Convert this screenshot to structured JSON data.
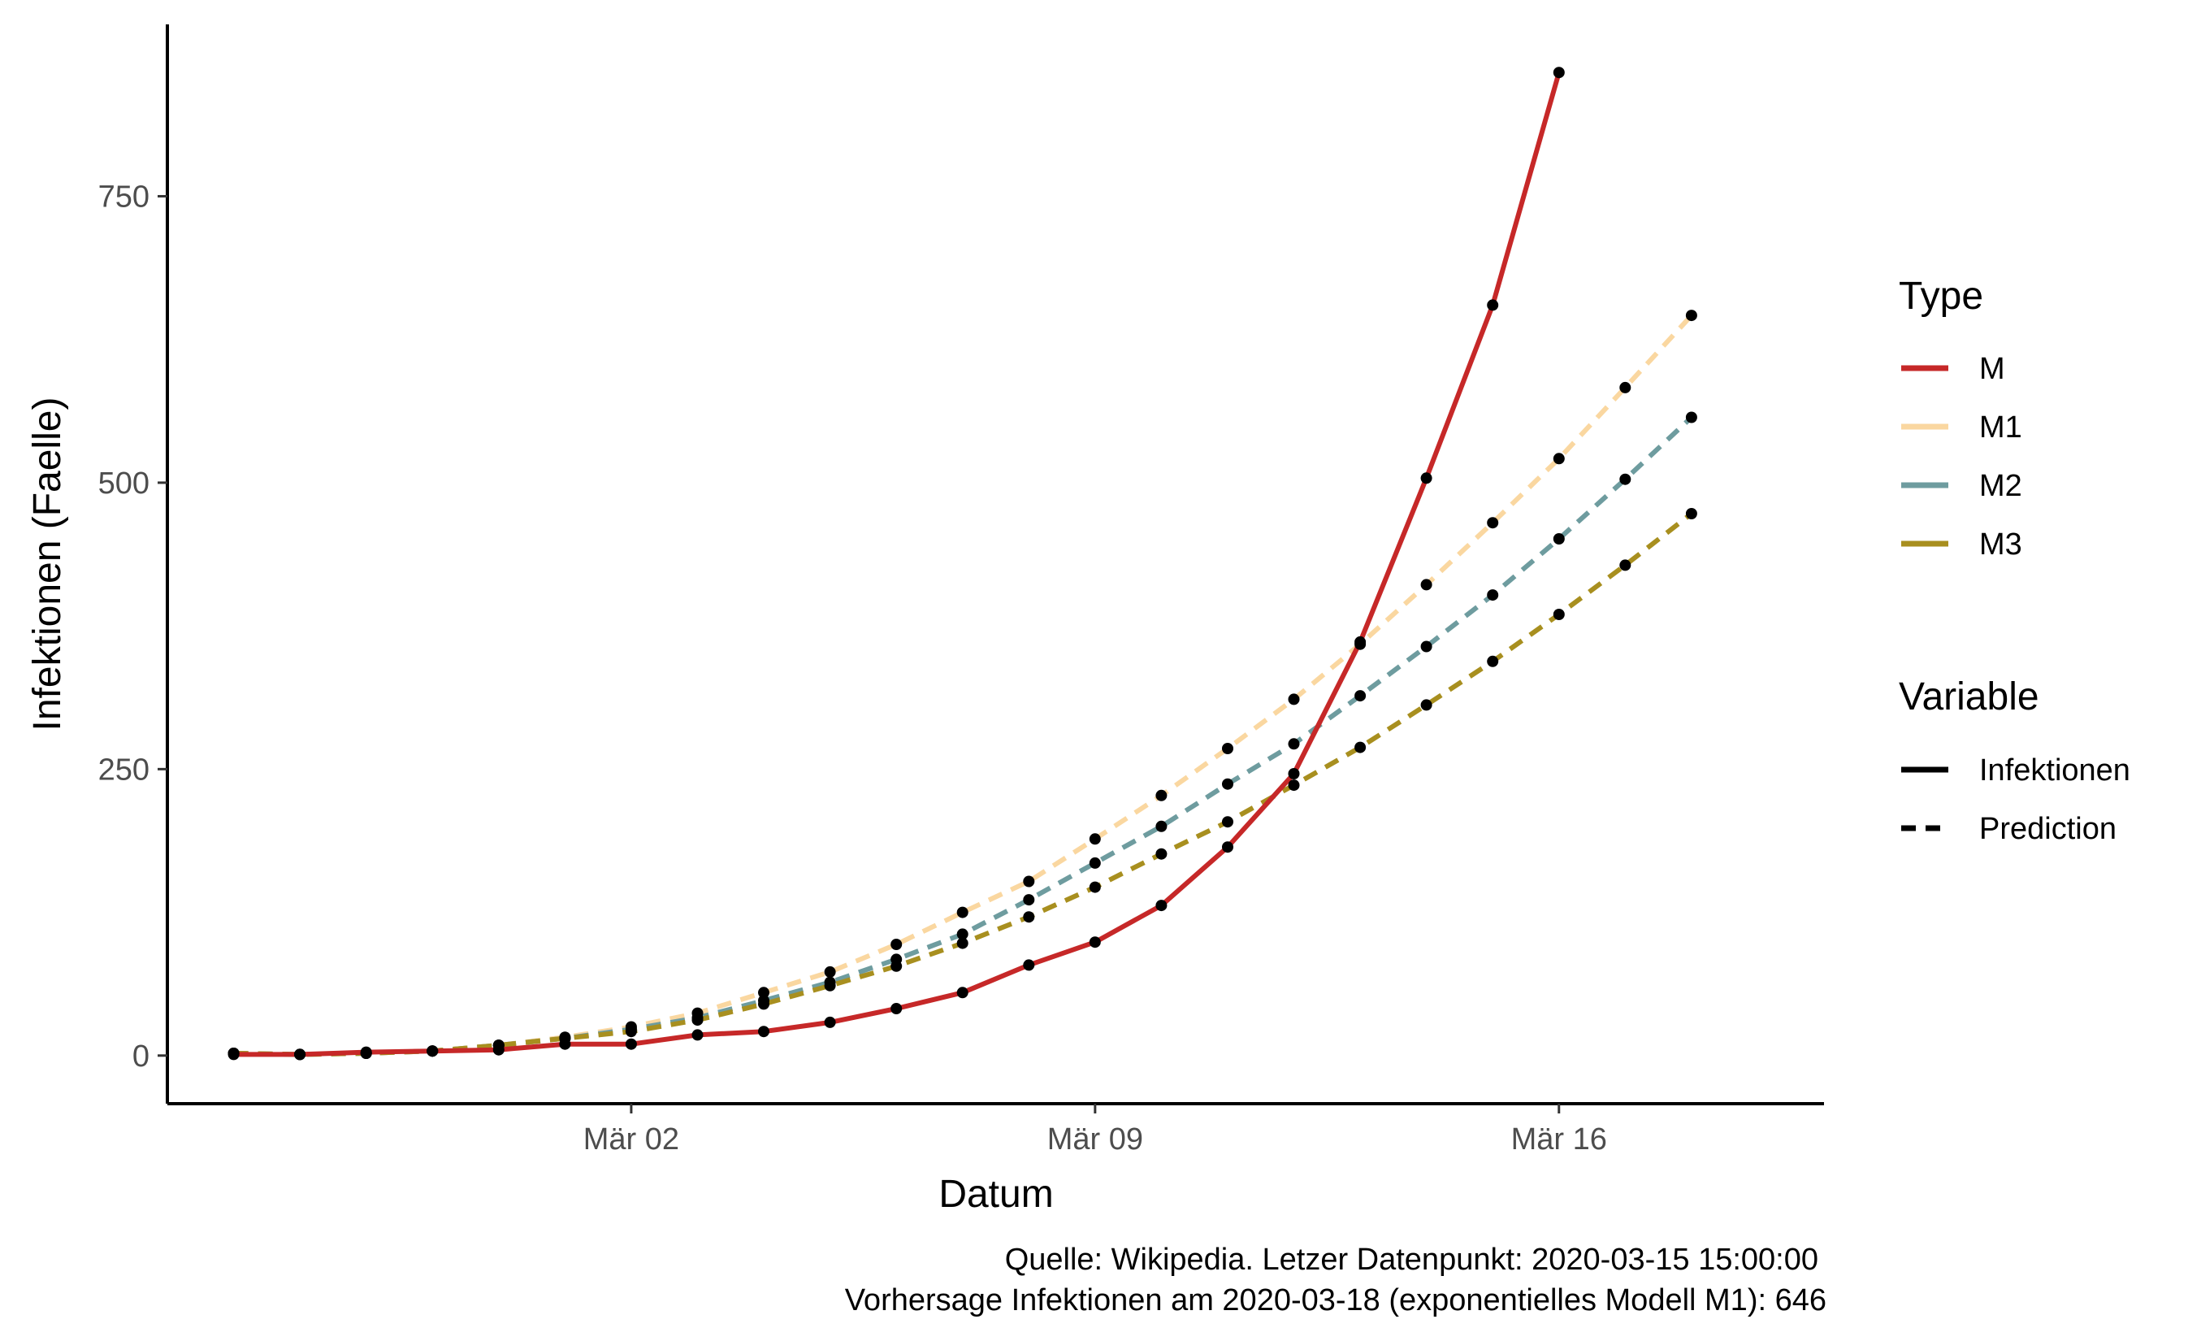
{
  "chart_data": {
    "type": "line",
    "x_type": "date",
    "xlabel": "Datum",
    "ylabel": "Infektionen (Faelle)",
    "x_ticks": [
      {
        "date": "2020-03-02",
        "label": "Mär 02"
      },
      {
        "date": "2020-03-09",
        "label": "Mär 09"
      },
      {
        "date": "2020-03-16",
        "label": "Mär 16"
      }
    ],
    "y_ticks": [
      0,
      250,
      500,
      750
    ],
    "xlim": [
      "2020-02-24",
      "2020-03-20"
    ],
    "ylim": [
      -42,
      900
    ],
    "grid": false,
    "legend_position": "right",
    "legend": {
      "type_title": "Type",
      "type_entries": [
        {
          "label": "M",
          "color": "#C62828"
        },
        {
          "label": "M1",
          "color": "#FAD7A0"
        },
        {
          "label": "M2",
          "color": "#6E9C9F"
        },
        {
          "label": "M3",
          "color": "#A88F1F"
        }
      ],
      "variable_title": "Variable",
      "variable_entries": [
        {
          "label": "Infektionen",
          "style": "solid"
        },
        {
          "label": "Prediction",
          "style": "dashed"
        }
      ]
    },
    "series": [
      {
        "name": "M",
        "variable": "Infektionen",
        "color": "#C62828",
        "style": "solid",
        "x": [
          "2020-02-25",
          "2020-02-26",
          "2020-02-27",
          "2020-02-28",
          "2020-02-29",
          "2020-03-01",
          "2020-03-02",
          "2020-03-03",
          "2020-03-04",
          "2020-03-05",
          "2020-03-06",
          "2020-03-07",
          "2020-03-08",
          "2020-03-09",
          "2020-03-10",
          "2020-03-11",
          "2020-03-12",
          "2020-03-13",
          "2020-03-14",
          "2020-03-15",
          "2020-03-16"
        ],
        "y": [
          1,
          1,
          3,
          4,
          5,
          10,
          10,
          18,
          21,
          29,
          41,
          55,
          79,
          99,
          131,
          182,
          246,
          361,
          504,
          655,
          858
        ]
      },
      {
        "name": "M1",
        "variable": "Prediction",
        "color": "#FAD7A0",
        "style": "dashed",
        "x": [
          "2020-02-25",
          "2020-02-26",
          "2020-02-27",
          "2020-02-28",
          "2020-02-29",
          "2020-03-01",
          "2020-03-02",
          "2020-03-03",
          "2020-03-04",
          "2020-03-05",
          "2020-03-06",
          "2020-03-07",
          "2020-03-08",
          "2020-03-09",
          "2020-03-10",
          "2020-03-11",
          "2020-03-12",
          "2020-03-13",
          "2020-03-14",
          "2020-03-15",
          "2020-03-16",
          "2020-03-17",
          "2020-03-18"
        ],
        "y": [
          2,
          1,
          2,
          4,
          9,
          16,
          25,
          37,
          55,
          73,
          97,
          125,
          152,
          189,
          227,
          268,
          311,
          359,
          411,
          465,
          521,
          583,
          646
        ]
      },
      {
        "name": "M2",
        "variable": "Prediction",
        "color": "#6E9C9F",
        "style": "dashed",
        "x": [
          "2020-02-25",
          "2020-02-26",
          "2020-02-27",
          "2020-02-28",
          "2020-02-29",
          "2020-03-01",
          "2020-03-02",
          "2020-03-03",
          "2020-03-04",
          "2020-03-05",
          "2020-03-06",
          "2020-03-07",
          "2020-03-08",
          "2020-03-09",
          "2020-03-10",
          "2020-03-11",
          "2020-03-12",
          "2020-03-13",
          "2020-03-14",
          "2020-03-15",
          "2020-03-16",
          "2020-03-17",
          "2020-03-18"
        ],
        "y": [
          2,
          1,
          2,
          4,
          9,
          15,
          23,
          33,
          48,
          64,
          84,
          106,
          136,
          168,
          200,
          237,
          272,
          314,
          357,
          402,
          451,
          503,
          557
        ]
      },
      {
        "name": "M3",
        "variable": "Prediction",
        "color": "#A88F1F",
        "style": "dashed",
        "x": [
          "2020-02-25",
          "2020-02-26",
          "2020-02-27",
          "2020-02-28",
          "2020-02-29",
          "2020-03-01",
          "2020-03-02",
          "2020-03-03",
          "2020-03-04",
          "2020-03-05",
          "2020-03-06",
          "2020-03-07",
          "2020-03-08",
          "2020-03-09",
          "2020-03-10",
          "2020-03-11",
          "2020-03-12",
          "2020-03-13",
          "2020-03-14",
          "2020-03-15",
          "2020-03-16",
          "2020-03-17",
          "2020-03-18"
        ],
        "y": [
          2,
          1,
          2,
          4,
          9,
          15,
          21,
          31,
          45,
          61,
          78,
          98,
          121,
          147,
          176,
          204,
          236,
          269,
          306,
          344,
          385,
          428,
          473
        ]
      }
    ],
    "caption": [
      "Quelle: Wikipedia. Letzer Datenpunkt: 2020-03-15 15:00:00",
      "Vorhersage Infektionen am  2020-03-18  (exponentielles Modell M1):  646"
    ]
  }
}
